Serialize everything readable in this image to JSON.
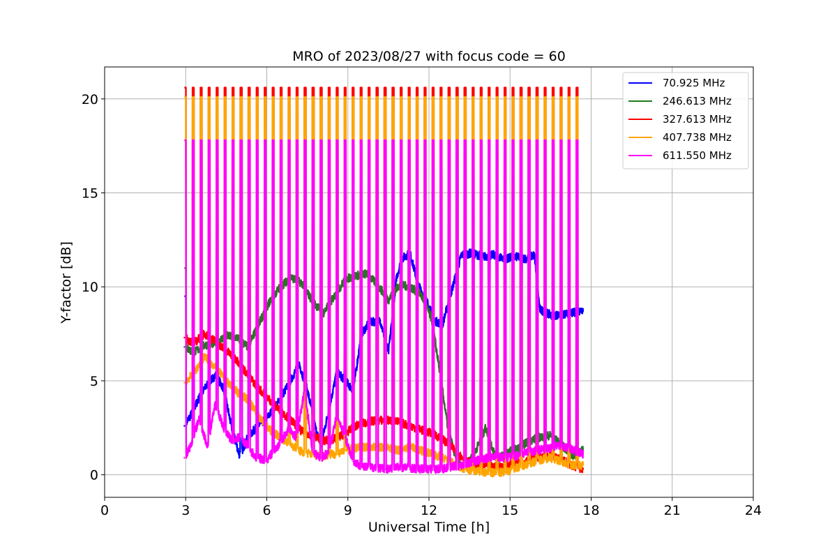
{
  "chart_data": {
    "type": "line",
    "title": "MRO of 2023/08/27 with focus code = 60",
    "xlabel": "Universal Time [h]",
    "ylabel": "Y-factor [dB]",
    "xlim": [
      0,
      24
    ],
    "ylim": [
      -1.2,
      21.7
    ],
    "xticks": [
      0,
      3,
      6,
      9,
      12,
      15,
      18,
      21,
      24
    ],
    "xtick_labels": [
      "0",
      "3",
      "6",
      "9",
      "12",
      "15",
      "18",
      "21",
      "24"
    ],
    "yticks": [
      0,
      5,
      10,
      15,
      20
    ],
    "ytick_labels": [
      "0",
      "5",
      "10",
      "15",
      "20"
    ],
    "grid": true,
    "legend_position": "top-right",
    "calibration_pulses": {
      "count": 50,
      "start_hour": 2.95,
      "end_hour": 17.45
    },
    "series": [
      {
        "name": " 70.925 MHz",
        "color": "#0000ff",
        "pulse_peak": 9.5,
        "x": [
          2.95,
          3.2,
          3.5,
          3.8,
          4.1,
          4.4,
          4.7,
          5.0,
          5.3,
          5.6,
          6.0,
          6.4,
          6.8,
          7.2,
          7.5,
          7.8,
          8.0,
          8.3,
          8.6,
          8.9,
          9.2,
          9.5,
          9.8,
          10.2,
          10.5,
          10.8,
          11.0,
          11.3,
          11.6,
          11.9,
          12.2,
          12.5,
          13.2,
          13.6,
          14.0,
          14.4,
          14.8,
          15.2,
          15.6,
          15.9,
          16.1,
          16.5,
          16.9,
          17.3,
          17.7
        ],
        "y": [
          2.6,
          3.2,
          4.1,
          4.8,
          5.3,
          4.6,
          2.5,
          1.0,
          2.0,
          2.5,
          3.0,
          3.8,
          4.8,
          5.9,
          4.5,
          2.5,
          1.5,
          3.5,
          5.5,
          5.0,
          4.5,
          7.5,
          8.1,
          8.2,
          6.5,
          10.5,
          11.5,
          11.8,
          10.1,
          9.3,
          8.2,
          8.0,
          11.7,
          11.8,
          11.6,
          11.7,
          11.5,
          11.6,
          11.5,
          11.7,
          8.8,
          8.5,
          8.5,
          8.6,
          8.8
        ]
      },
      {
        "name": "246.613 MHz",
        "color": "#1e7a1e",
        "pulse_peak": 11.0,
        "x": [
          2.95,
          3.3,
          3.7,
          4.1,
          4.5,
          4.9,
          5.3,
          5.7,
          6.1,
          6.5,
          6.9,
          7.3,
          7.7,
          8.1,
          8.5,
          8.9,
          9.3,
          9.7,
          10.1,
          10.5,
          10.9,
          11.3,
          11.7,
          12.1,
          12.4,
          12.7,
          13.0,
          13.3,
          13.7,
          14.1,
          14.5,
          14.9,
          15.3,
          15.7,
          16.1,
          16.5,
          16.9,
          17.3,
          17.7
        ],
        "y": [
          6.8,
          6.5,
          6.9,
          7.0,
          7.4,
          7.3,
          6.8,
          8.0,
          9.2,
          10.0,
          10.5,
          10.2,
          9.2,
          8.6,
          9.5,
          10.4,
          10.6,
          10.7,
          10.1,
          9.3,
          10.1,
          10.0,
          9.6,
          8.3,
          5.5,
          2.5,
          0.8,
          0.3,
          1.2,
          2.5,
          0.8,
          1.2,
          1.4,
          1.8,
          2.0,
          2.1,
          1.6,
          1.0,
          1.3
        ]
      },
      {
        "name": "327.613 MHz",
        "color": "#ff0000",
        "pulse_peak": 20.6,
        "x": [
          2.95,
          3.3,
          3.7,
          4.1,
          4.5,
          4.9,
          5.3,
          5.7,
          6.1,
          6.5,
          6.9,
          7.3,
          7.7,
          8.1,
          8.5,
          8.9,
          9.3,
          9.7,
          10.1,
          10.5,
          10.9,
          11.3,
          11.7,
          12.1,
          12.5,
          12.9,
          13.3,
          13.7,
          14.1,
          14.5,
          14.9,
          15.3,
          15.7,
          16.1,
          16.5,
          16.9,
          17.3,
          17.7
        ],
        "y": [
          7.3,
          7.0,
          7.5,
          7.1,
          6.6,
          6.1,
          5.3,
          4.6,
          4.0,
          3.4,
          2.9,
          2.3,
          2.1,
          1.8,
          1.9,
          2.2,
          2.6,
          2.8,
          2.9,
          2.9,
          2.8,
          2.6,
          2.4,
          2.2,
          1.9,
          1.4,
          0.8,
          0.5,
          0.5,
          0.4,
          0.5,
          0.6,
          0.8,
          0.9,
          1.0,
          0.8,
          0.5,
          0.3
        ]
      },
      {
        "name": "407.738 MHz",
        "color": "#ffa500",
        "pulse_peak": 20.1,
        "x": [
          2.95,
          3.3,
          3.7,
          4.1,
          4.5,
          4.9,
          5.3,
          5.7,
          6.1,
          6.5,
          6.9,
          7.3,
          7.7,
          8.1,
          8.5,
          8.9,
          9.3,
          9.7,
          10.1,
          10.5,
          10.9,
          11.3,
          11.7,
          12.1,
          12.5,
          12.9,
          13.3,
          13.7,
          14.1,
          14.5,
          14.9,
          15.3,
          15.7,
          16.1,
          16.5,
          16.9,
          17.3,
          17.7
        ],
        "y": [
          4.9,
          5.4,
          6.3,
          5.7,
          5.0,
          4.4,
          4.0,
          3.1,
          2.4,
          2.0,
          1.6,
          1.2,
          1.1,
          1.0,
          1.1,
          1.3,
          1.4,
          1.5,
          1.5,
          1.4,
          1.3,
          1.5,
          1.3,
          1.1,
          0.9,
          0.6,
          0.3,
          0.2,
          0.1,
          0.1,
          0.2,
          0.4,
          0.6,
          0.8,
          0.9,
          0.7,
          0.5,
          0.5
        ]
      },
      {
        "name": "611.550 MHz",
        "color": "#ff00ff",
        "pulse_peak": 17.8,
        "x": [
          2.95,
          3.2,
          3.5,
          3.8,
          4.1,
          4.4,
          4.7,
          5.0,
          5.3,
          5.6,
          6.0,
          6.4,
          6.8,
          7.1,
          7.4,
          7.7,
          8.0,
          8.3,
          8.6,
          8.9,
          9.2,
          9.6,
          10.0,
          10.4,
          10.8,
          11.2,
          11.6,
          12.0,
          12.4,
          12.8,
          13.2,
          13.6,
          14.0,
          14.4,
          14.8,
          15.2,
          15.6,
          16.0,
          16.4,
          16.8,
          17.2,
          17.7
        ],
        "y": [
          0.9,
          1.6,
          3.0,
          1.5,
          3.8,
          2.5,
          1.8,
          2.0,
          1.5,
          0.9,
          0.8,
          1.5,
          2.4,
          2.0,
          4.5,
          1.2,
          0.9,
          1.2,
          3.2,
          2.0,
          0.7,
          0.4,
          0.4,
          0.3,
          0.4,
          0.4,
          0.3,
          0.3,
          0.3,
          0.4,
          0.5,
          0.7,
          0.8,
          1.0,
          0.9,
          1.0,
          1.2,
          1.3,
          1.4,
          1.6,
          1.4,
          1.1
        ]
      }
    ]
  }
}
